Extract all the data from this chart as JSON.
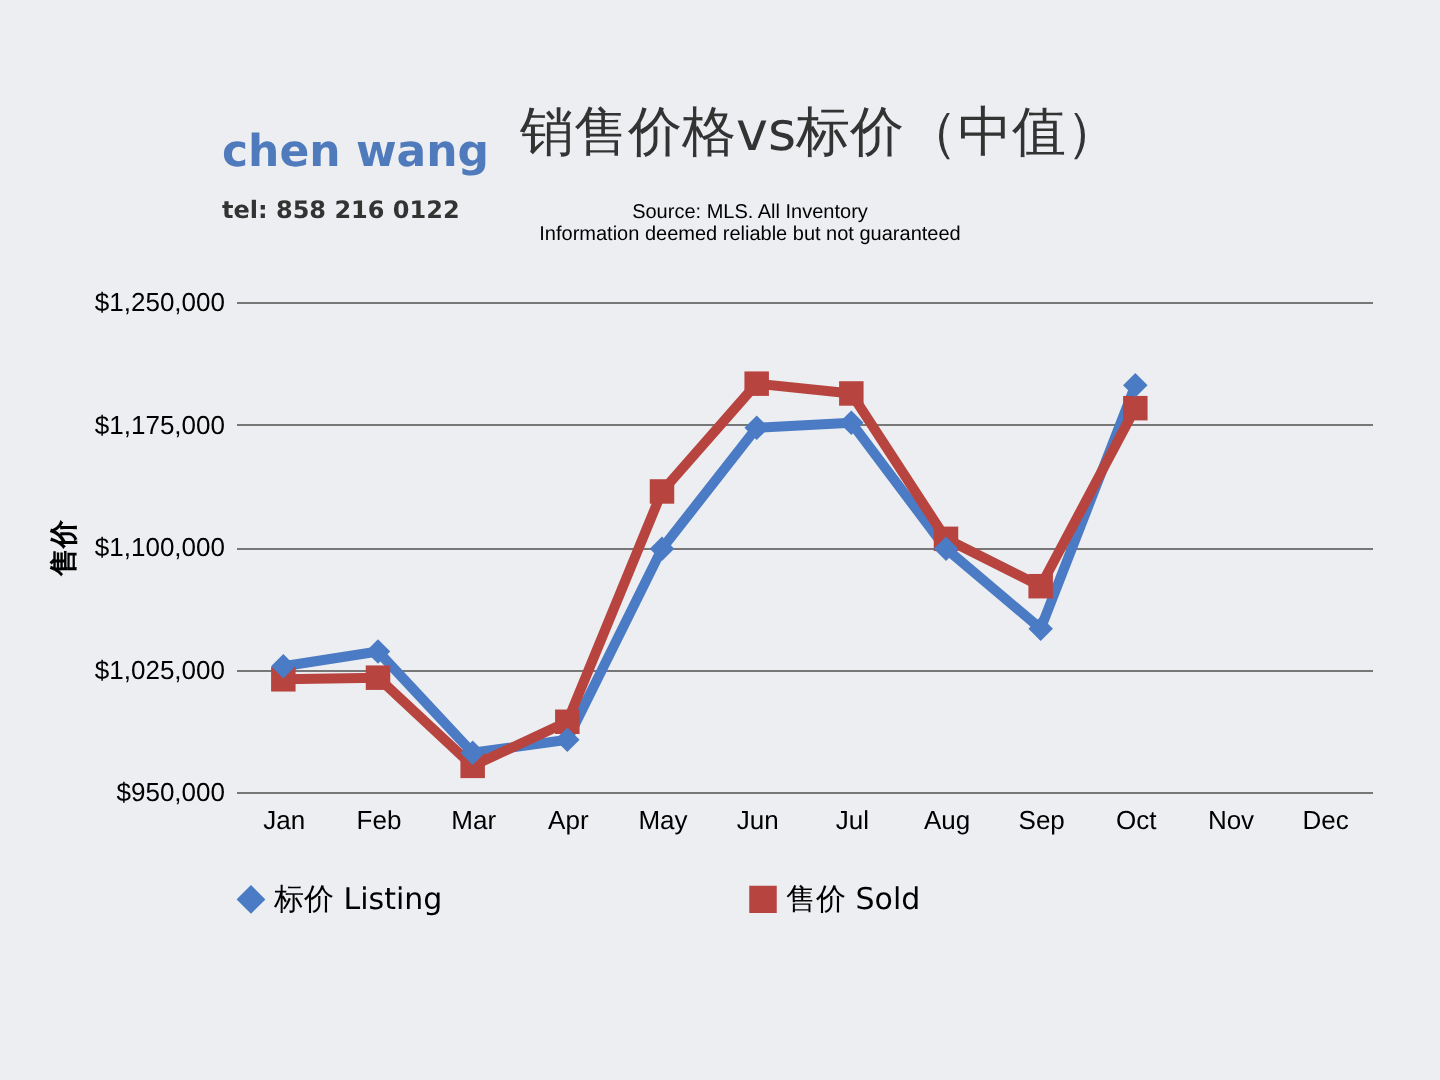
{
  "chart_data": {
    "type": "line",
    "title": "销售价格vs标价（中值）",
    "ylabel": "售价",
    "annotations": [
      "chen wang",
      "tel: 858 216 0122",
      "Source: MLS. All Inventory",
      "Information deemed reliable but not guaranteed"
    ],
    "categories": [
      "Jan",
      "Feb",
      "Mar",
      "Apr",
      "May",
      "Jun",
      "Jul",
      "Aug",
      "Sep",
      "Oct",
      "Nov",
      "Dec"
    ],
    "series": [
      {
        "name": "标价 Listing",
        "color": "#4a7bc4",
        "marker": "diamond",
        "values": [
          1027000,
          1036000,
          974000,
          982000,
          1099000,
          1173000,
          1176000,
          1099000,
          1050000,
          1199000,
          null,
          null
        ]
      },
      {
        "name": "售价 Sold",
        "color": "#b8443f",
        "marker": "square",
        "values": [
          1019000,
          1020000,
          966000,
          993000,
          1134000,
          1200000,
          1194000,
          1105000,
          1076000,
          1185000,
          null,
          null
        ]
      }
    ],
    "ylim": [
      950000,
      1250000
    ],
    "yticks": [
      {
        "value": 950000,
        "label": "$950,000"
      },
      {
        "value": 1025000,
        "label": "$1,025,000"
      },
      {
        "value": 1100000,
        "label": "$1,100,000"
      },
      {
        "value": 1175000,
        "label": "$1,175,000"
      },
      {
        "value": 1250000,
        "label": "$1,250,000"
      }
    ],
    "grid": "y",
    "legend": "bottom",
    "line_style": "solid"
  }
}
